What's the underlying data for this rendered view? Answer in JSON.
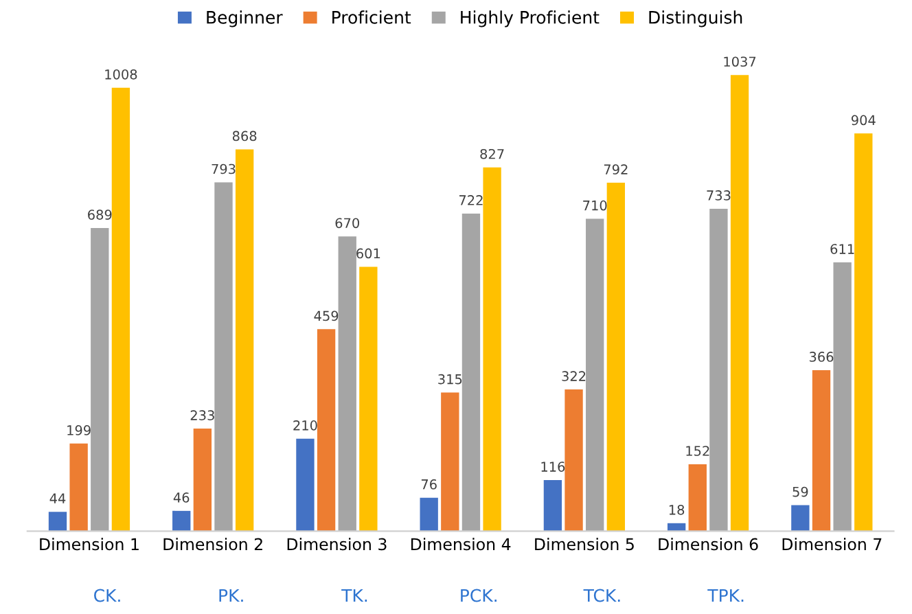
{
  "chart_data": {
    "type": "bar",
    "categories": [
      "Dimension 1",
      "Dimension 2",
      "Dimension 3",
      "Dimension 4",
      "Dimension 5",
      "Dimension 6",
      "Dimension 7"
    ],
    "series": [
      {
        "name": "Beginner",
        "color": "#4472c4",
        "values": [
          44,
          46,
          210,
          76,
          116,
          18,
          59
        ]
      },
      {
        "name": "Proficient",
        "color": "#ed7d31",
        "values": [
          199,
          233,
          459,
          315,
          322,
          152,
          366
        ]
      },
      {
        "name": "Highly Proficient",
        "color": "#a5a5a5",
        "values": [
          689,
          793,
          670,
          722,
          710,
          733,
          611
        ]
      },
      {
        "name": "Distinguish",
        "color": "#ffc000",
        "values": [
          1008,
          868,
          601,
          827,
          792,
          1037,
          904
        ]
      }
    ],
    "data_labels": true,
    "legend": "top",
    "grid": false,
    "annotations": [
      "CK.",
      "PK.",
      "TK.",
      "PCK.",
      "TCK.",
      "TPK."
    ]
  }
}
